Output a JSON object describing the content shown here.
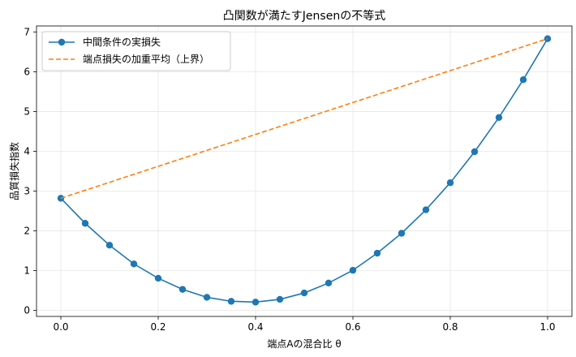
{
  "chart_data": {
    "type": "line",
    "title": "凸関数が満たすJensenの不等式",
    "xlabel": "端点Aの混合比 θ",
    "ylabel": "品質損失指数",
    "xlim": [
      -0.05,
      1.05
    ],
    "ylim": [
      -0.15,
      7.15
    ],
    "xticks": [
      0.0,
      0.2,
      0.4,
      0.6,
      0.8,
      1.0
    ],
    "xtick_labels": [
      "0.0",
      "0.2",
      "0.4",
      "0.6",
      "0.8",
      "1.0"
    ],
    "yticks": [
      0,
      1,
      2,
      3,
      4,
      5,
      6,
      7
    ],
    "ytick_labels": [
      "0",
      "1",
      "2",
      "3",
      "4",
      "5",
      "6",
      "7"
    ],
    "grid": true,
    "legend_position": "top-left",
    "series": [
      {
        "name": "中間条件の実損失",
        "color": "#1f77b4",
        "style": "solid",
        "marker": "circle",
        "x": [
          0.0,
          0.05,
          0.1,
          0.15,
          0.2,
          0.25,
          0.3,
          0.35,
          0.4,
          0.45,
          0.5,
          0.55,
          0.6,
          0.65,
          0.7,
          0.75,
          0.8,
          0.85,
          0.9,
          0.95,
          1.0
        ],
        "y": [
          2.82,
          2.19,
          1.64,
          1.17,
          0.81,
          0.53,
          0.33,
          0.23,
          0.21,
          0.28,
          0.44,
          0.69,
          1.01,
          1.44,
          1.94,
          2.53,
          3.21,
          3.99,
          4.85,
          5.8,
          6.83
        ]
      },
      {
        "name": "端点損失の加重平均（上界）",
        "color": "#ff7f0e",
        "style": "dashed",
        "marker": "none",
        "x": [
          0.0,
          1.0
        ],
        "y": [
          2.82,
          6.83
        ]
      }
    ]
  }
}
